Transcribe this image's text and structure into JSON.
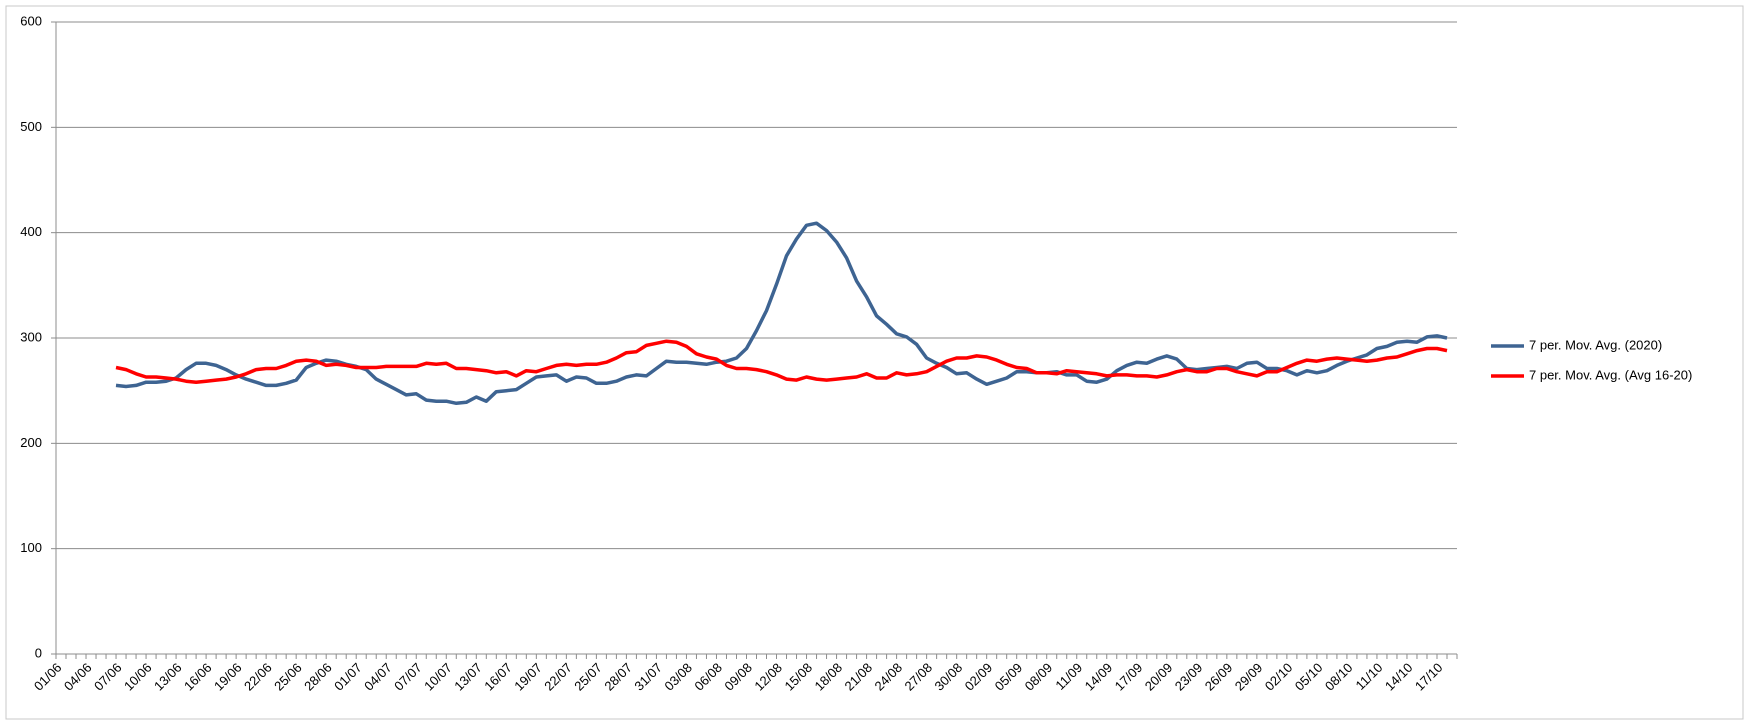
{
  "chart_data": {
    "type": "line",
    "categories": [
      "01/06",
      null,
      null,
      "04/06",
      null,
      null,
      "07/06",
      null,
      null,
      "10/06",
      null,
      null,
      "13/06",
      null,
      null,
      "16/06",
      null,
      null,
      "19/06",
      null,
      null,
      "22/06",
      null,
      null,
      "25/06",
      null,
      null,
      "28/06",
      null,
      null,
      "01/07",
      null,
      null,
      "04/07",
      null,
      null,
      "07/07",
      null,
      null,
      "10/07",
      null,
      null,
      "13/07",
      null,
      null,
      "16/07",
      null,
      null,
      "19/07",
      null,
      null,
      "22/07",
      null,
      null,
      "25/07",
      null,
      null,
      "28/07",
      null,
      null,
      "31/07",
      null,
      null,
      "03/08",
      null,
      null,
      "06/08",
      null,
      null,
      "09/08",
      null,
      null,
      "12/08",
      null,
      null,
      "15/08",
      null,
      null,
      "18/08",
      null,
      null,
      "21/08",
      null,
      null,
      "24/08",
      null,
      null,
      "27/08",
      null,
      null,
      "30/08",
      null,
      null,
      "02/09",
      null,
      null,
      "05/09",
      null,
      null,
      "08/09",
      null,
      null,
      "11/09",
      null,
      null,
      "14/09",
      null,
      null,
      "17/09",
      null,
      null,
      "20/09",
      null,
      null,
      "23/09",
      null,
      null,
      "26/09",
      null,
      null,
      "29/09",
      null,
      null,
      "02/10",
      null,
      null,
      "05/10",
      null,
      null,
      "08/10",
      null,
      null,
      "11/10",
      null,
      null,
      "14/10",
      null,
      null,
      "17/10",
      null
    ],
    "series": [
      {
        "name": "7 per. Mov. Avg. (2020)",
        "color": "#3e6492",
        "values": [
          null,
          null,
          null,
          null,
          null,
          null,
          255,
          254,
          255,
          258,
          258,
          259,
          262,
          270,
          276,
          276,
          274,
          270,
          265,
          261,
          258,
          255,
          255,
          257,
          260,
          272,
          276,
          279,
          278,
          275,
          273,
          270,
          261,
          256,
          251,
          246,
          247,
          241,
          240,
          240,
          238,
          239,
          244,
          240,
          249,
          250,
          251,
          257,
          263,
          264,
          265,
          259,
          263,
          262,
          257,
          257,
          259,
          263,
          265,
          264,
          271,
          278,
          277,
          277,
          276,
          275,
          277,
          278,
          281,
          290,
          307,
          326,
          351,
          378,
          394,
          407,
          409,
          402,
          391,
          376,
          354,
          339,
          321,
          313,
          304,
          301,
          294,
          281,
          276,
          272,
          266,
          267,
          261,
          256,
          259,
          262,
          268,
          268,
          267,
          267,
          268,
          265,
          265,
          259,
          258,
          261,
          269,
          274,
          277,
          276,
          280,
          283,
          280,
          271,
          270,
          271,
          272,
          273,
          271,
          276,
          277,
          271,
          271,
          269,
          265,
          269,
          267,
          269,
          274,
          278,
          281,
          284,
          290,
          292,
          296,
          297,
          296,
          301,
          302,
          300
        ]
      },
      {
        "name": "7 per. Mov. Avg. (Avg 16-20)",
        "color": "#ff0000",
        "values": [
          null,
          null,
          null,
          null,
          null,
          null,
          272,
          270,
          266,
          263,
          263,
          262,
          261,
          259,
          258,
          259,
          260,
          261,
          263,
          266,
          270,
          271,
          271,
          274,
          278,
          279,
          278,
          274,
          275,
          274,
          272,
          272,
          272,
          273,
          273,
          273,
          273,
          276,
          275,
          276,
          271,
          271,
          270,
          269,
          267,
          268,
          264,
          269,
          268,
          271,
          274,
          275,
          274,
          275,
          275,
          277,
          281,
          286,
          287,
          293,
          295,
          297,
          296,
          292,
          285,
          282,
          280,
          274,
          271,
          271,
          270,
          268,
          265,
          261,
          260,
          263,
          261,
          260,
          261,
          262,
          263,
          266,
          262,
          262,
          267,
          265,
          266,
          268,
          273,
          278,
          281,
          281,
          283,
          282,
          279,
          275,
          272,
          271,
          267,
          267,
          266,
          269,
          268,
          267,
          266,
          264,
          265,
          265,
          264,
          264,
          263,
          265,
          268,
          270,
          268,
          268,
          271,
          271,
          268,
          266,
          264,
          268,
          268,
          272,
          276,
          279,
          278,
          280,
          281,
          280,
          279,
          278,
          279,
          281,
          282,
          285,
          288,
          290,
          290,
          288
        ]
      }
    ],
    "ylim": [
      0,
      600
    ],
    "yticks": [
      0,
      100,
      200,
      300,
      400,
      500,
      600
    ],
    "grid": true,
    "legend": "right"
  }
}
